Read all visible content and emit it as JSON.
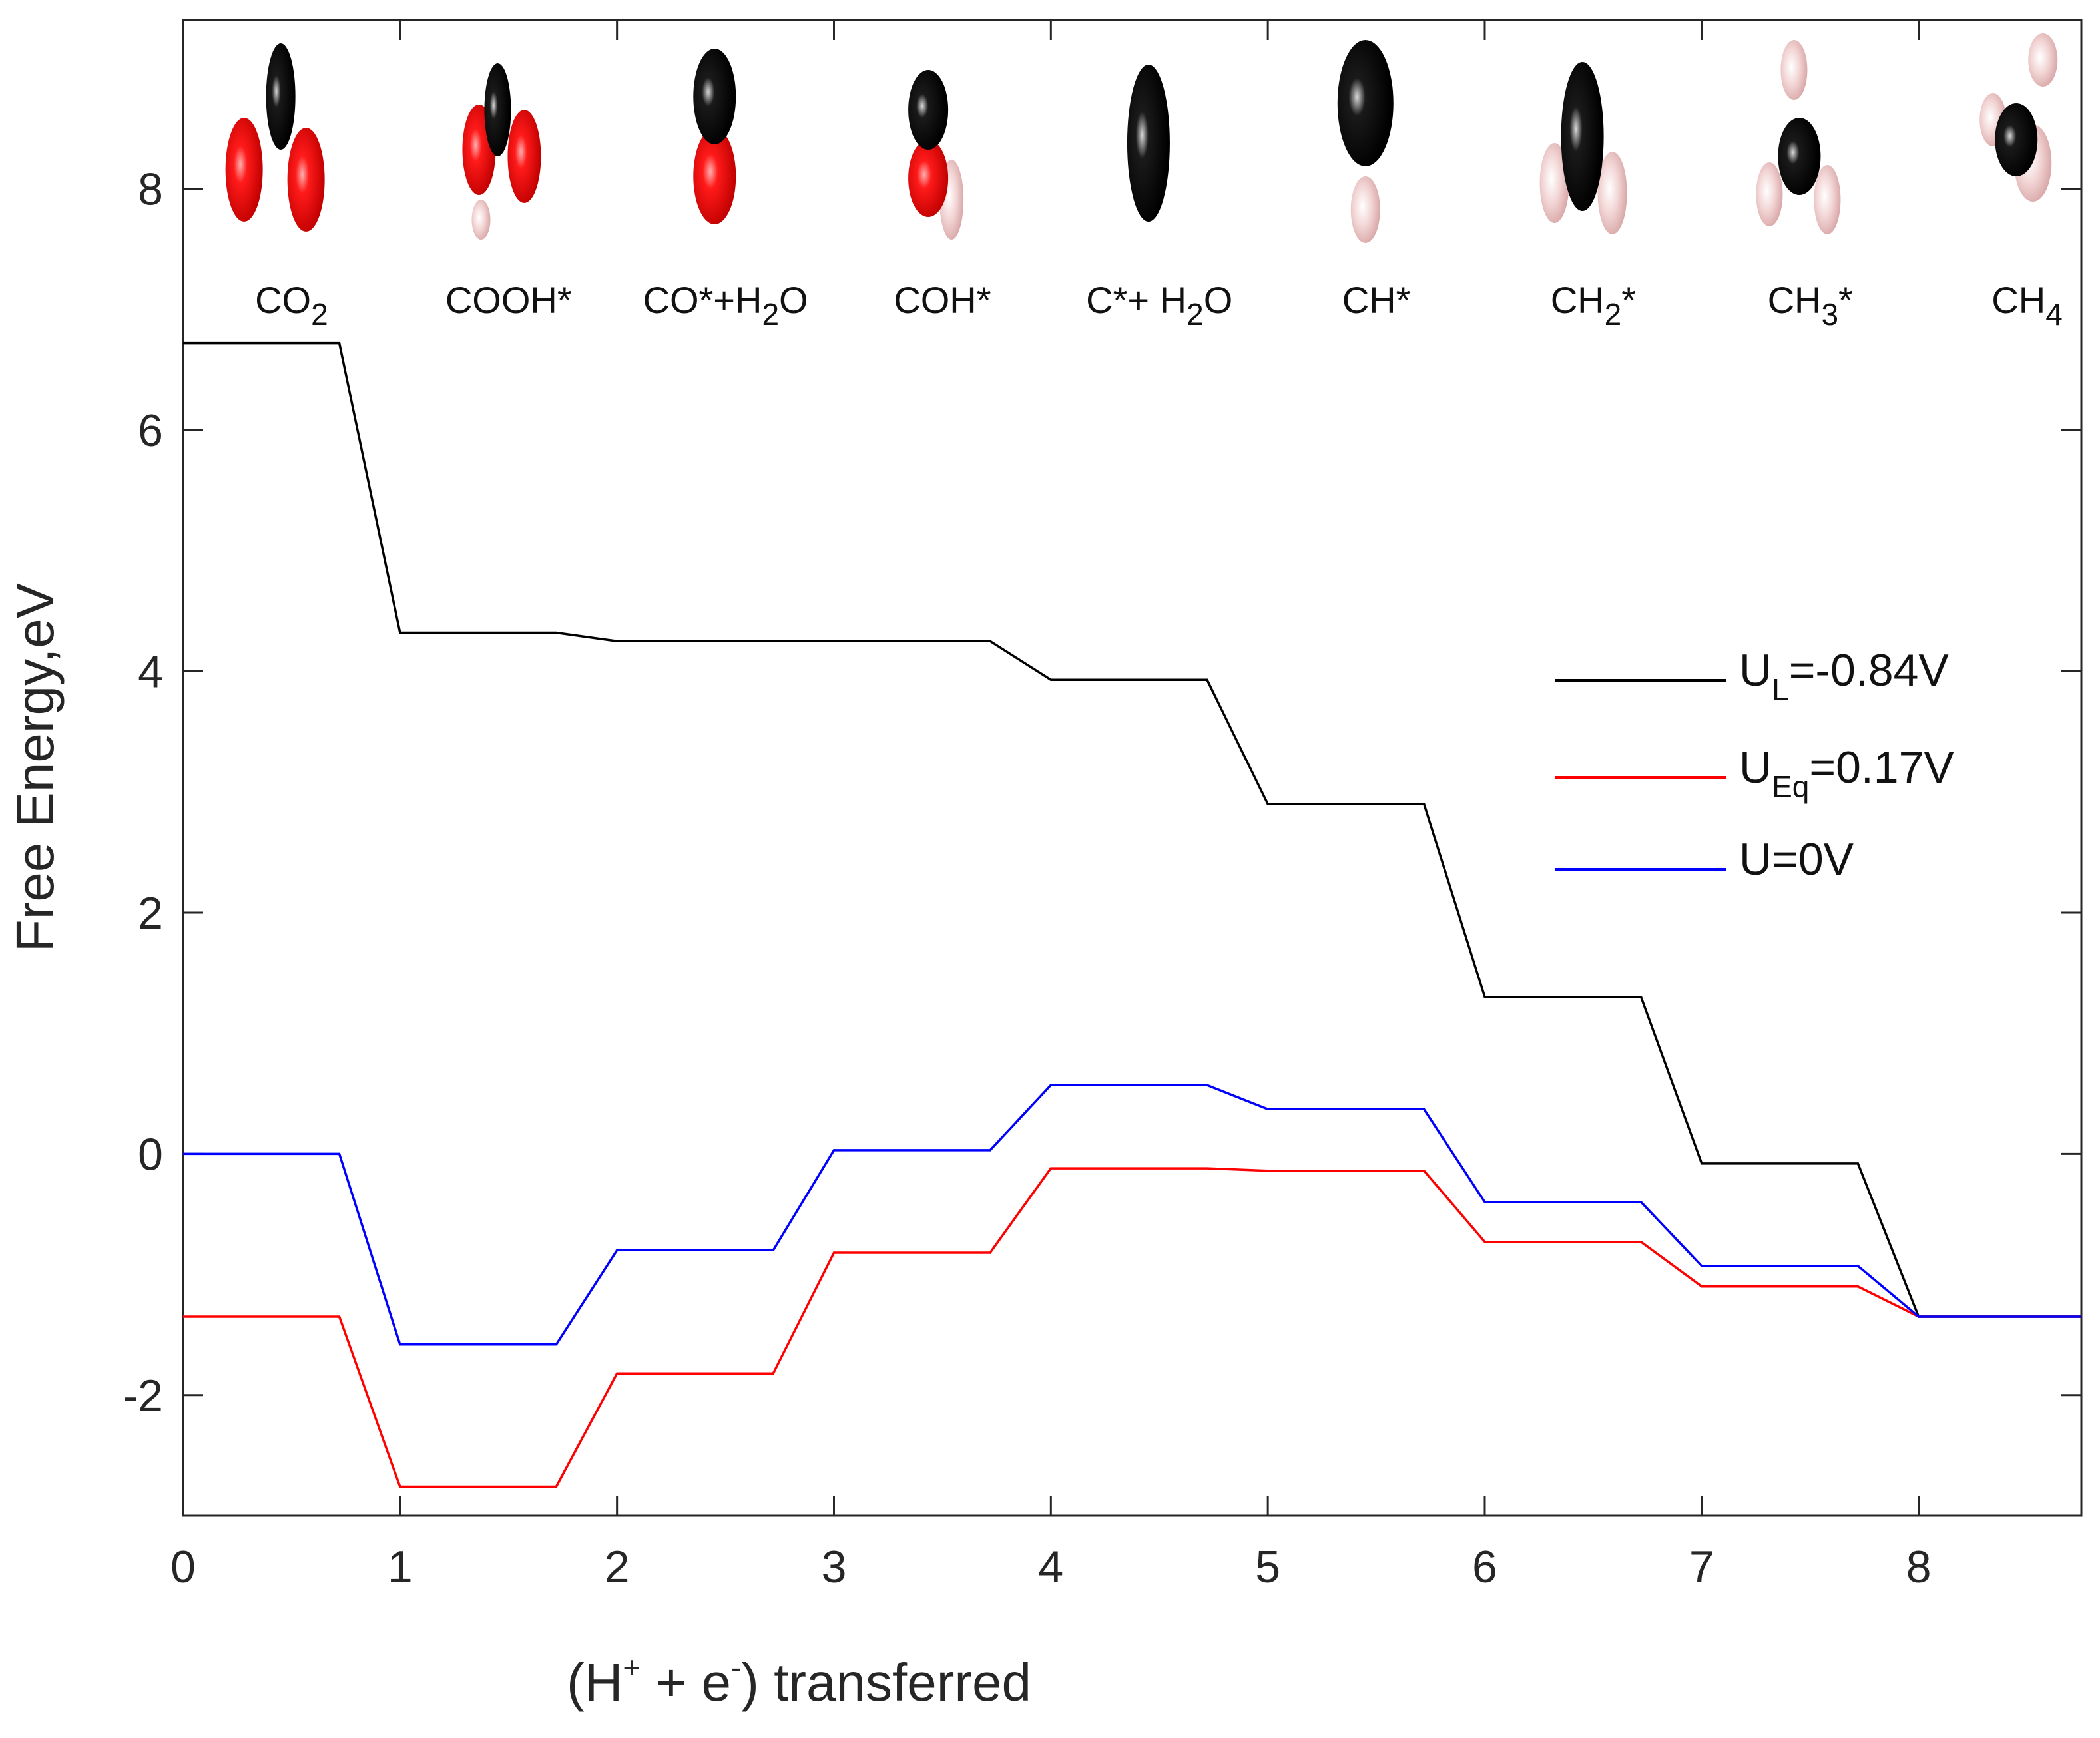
{
  "chart_data": {
    "type": "line",
    "xlabel": {
      "pre": "(H",
      "sup1": "+",
      "mid": " + e",
      "sup2": "-",
      "post": ") transferred"
    },
    "ylabel": "Free Energy,eV",
    "xlim": [
      0,
      8.75
    ],
    "ylim": [
      -3.0,
      9.4
    ],
    "x_ticks": [
      "0",
      "1",
      "2",
      "3",
      "4",
      "5",
      "6",
      "7",
      "8"
    ],
    "y_ticks": [
      "-2",
      "0",
      "2",
      "4",
      "6",
      "8"
    ],
    "steps": [
      0,
      1,
      2,
      3,
      4,
      5,
      6,
      7,
      8
    ],
    "plateau_width": 0.72,
    "species": [
      {
        "main": "CO",
        "sub": "2",
        "tail": ""
      },
      {
        "main": "COOH*",
        "sub": "",
        "tail": ""
      },
      {
        "main": "CO*+H",
        "sub": "2",
        "tail": "O"
      },
      {
        "main": "COH*",
        "sub": "",
        "tail": ""
      },
      {
        "main": "C*+ H",
        "sub": "2",
        "tail": "O"
      },
      {
        "main": "CH*",
        "sub": "",
        "tail": ""
      },
      {
        "main": "CH",
        "sub": "2",
        "tail": "*"
      },
      {
        "main": "CH",
        "sub": "3",
        "tail": "*"
      },
      {
        "main": "CH",
        "sub": "4",
        "tail": ""
      }
    ],
    "series": [
      {
        "name": "U_L=-0.84V",
        "legend_main": "U",
        "legend_sub": "L",
        "legend_tail": "=-0.84V",
        "color": "#000000",
        "values": [
          6.72,
          4.32,
          4.25,
          4.25,
          3.93,
          2.9,
          1.3,
          -0.08,
          -1.35
        ]
      },
      {
        "name": "U_Eq=0.17V",
        "legend_main": "U",
        "legend_sub": "Eq",
        "legend_tail": "=0.17V",
        "color": "#ff0000",
        "values": [
          -1.35,
          -2.76,
          -1.82,
          -0.82,
          -0.12,
          -0.14,
          -0.73,
          -1.1,
          -1.35
        ]
      },
      {
        "name": "U=0V",
        "legend_main": "U=0V",
        "legend_sub": "",
        "legend_tail": "",
        "color": "#0000ff",
        "values": [
          0.0,
          -1.58,
          -0.8,
          0.03,
          0.57,
          0.37,
          -0.4,
          -0.93,
          -1.35
        ]
      }
    ]
  }
}
